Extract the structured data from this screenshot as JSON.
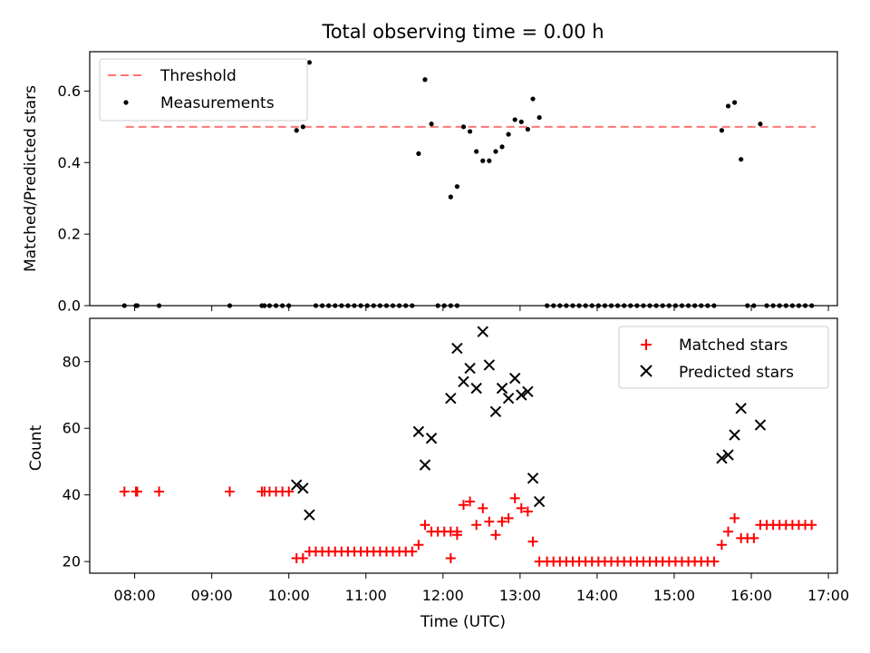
{
  "chart_data": [
    {
      "type": "scatter",
      "title": "Total observing time = 0.00 h",
      "ylabel": "Matched/Predicted stars",
      "ylim": [
        0,
        0.71
      ],
      "yticks": [
        0.0,
        0.2,
        0.4,
        0.6
      ],
      "ytick_labels": [
        "0.0",
        "0.2",
        "0.4",
        "0.6"
      ],
      "legend_position": "top-left",
      "threshold": {
        "name": "Threshold",
        "value": 0.5,
        "x_range": [
          "07:53",
          "16:50"
        ],
        "color": "#ff7777"
      },
      "series": [
        {
          "name": "Measurements",
          "color": "#000000",
          "points": [
            {
              "x": "07:52",
              "y": 0
            },
            {
              "x": "08:01",
              "y": 0
            },
            {
              "x": "08:02",
              "y": 0
            },
            {
              "x": "08:19",
              "y": 0
            },
            {
              "x": "09:14",
              "y": 0
            },
            {
              "x": "09:39",
              "y": 0
            },
            {
              "x": "09:41",
              "y": 0
            },
            {
              "x": "09:45",
              "y": 0
            },
            {
              "x": "09:50",
              "y": 0
            },
            {
              "x": "09:55",
              "y": 0
            },
            {
              "x": "10:00",
              "y": 0
            },
            {
              "x": "10:06",
              "y": 0.49
            },
            {
              "x": "10:11",
              "y": 0.5
            },
            {
              "x": "10:16",
              "y": 0.68
            },
            {
              "x": "10:21",
              "y": 0
            },
            {
              "x": "10:26",
              "y": 0
            },
            {
              "x": "10:31",
              "y": 0
            },
            {
              "x": "10:36",
              "y": 0
            },
            {
              "x": "10:41",
              "y": 0
            },
            {
              "x": "10:46",
              "y": 0
            },
            {
              "x": "10:51",
              "y": 0
            },
            {
              "x": "10:56",
              "y": 0
            },
            {
              "x": "11:01",
              "y": 0
            },
            {
              "x": "11:06",
              "y": 0
            },
            {
              "x": "11:11",
              "y": 0
            },
            {
              "x": "11:16",
              "y": 0
            },
            {
              "x": "11:21",
              "y": 0
            },
            {
              "x": "11:26",
              "y": 0
            },
            {
              "x": "11:31",
              "y": 0
            },
            {
              "x": "11:36",
              "y": 0
            },
            {
              "x": "11:41",
              "y": 0.425
            },
            {
              "x": "11:46",
              "y": 0.632
            },
            {
              "x": "11:51",
              "y": 0.508
            },
            {
              "x": "11:56",
              "y": 0
            },
            {
              "x": "12:01",
              "y": 0
            },
            {
              "x": "12:06",
              "y": 0
            },
            {
              "x": "12:11",
              "y": 0
            },
            {
              "x": "12:06",
              "y": 0.304
            },
            {
              "x": "12:11",
              "y": 0.333
            },
            {
              "x": "12:16",
              "y": 0.5
            },
            {
              "x": "12:21",
              "y": 0.487
            },
            {
              "x": "12:26",
              "y": 0.431
            },
            {
              "x": "12:31",
              "y": 0.405
            },
            {
              "x": "12:36",
              "y": 0.405
            },
            {
              "x": "12:41",
              "y": 0.431
            },
            {
              "x": "12:46",
              "y": 0.444
            },
            {
              "x": "12:51",
              "y": 0.479
            },
            {
              "x": "12:56",
              "y": 0.52
            },
            {
              "x": "13:01",
              "y": 0.514
            },
            {
              "x": "13:06",
              "y": 0.493
            },
            {
              "x": "13:10",
              "y": 0.578
            },
            {
              "x": "13:15",
              "y": 0.526
            },
            {
              "x": "13:21",
              "y": 0
            },
            {
              "x": "13:26",
              "y": 0
            },
            {
              "x": "13:31",
              "y": 0
            },
            {
              "x": "13:36",
              "y": 0
            },
            {
              "x": "13:41",
              "y": 0
            },
            {
              "x": "13:46",
              "y": 0
            },
            {
              "x": "13:51",
              "y": 0
            },
            {
              "x": "13:56",
              "y": 0
            },
            {
              "x": "14:01",
              "y": 0
            },
            {
              "x": "14:06",
              "y": 0
            },
            {
              "x": "14:11",
              "y": 0
            },
            {
              "x": "14:16",
              "y": 0
            },
            {
              "x": "14:21",
              "y": 0
            },
            {
              "x": "14:26",
              "y": 0
            },
            {
              "x": "14:31",
              "y": 0
            },
            {
              "x": "14:36",
              "y": 0
            },
            {
              "x": "14:41",
              "y": 0
            },
            {
              "x": "14:46",
              "y": 0
            },
            {
              "x": "14:51",
              "y": 0
            },
            {
              "x": "14:56",
              "y": 0
            },
            {
              "x": "15:01",
              "y": 0
            },
            {
              "x": "15:06",
              "y": 0
            },
            {
              "x": "15:11",
              "y": 0
            },
            {
              "x": "15:16",
              "y": 0
            },
            {
              "x": "15:21",
              "y": 0
            },
            {
              "x": "15:26",
              "y": 0
            },
            {
              "x": "15:31",
              "y": 0
            },
            {
              "x": "15:37",
              "y": 0.49
            },
            {
              "x": "15:42",
              "y": 0.558
            },
            {
              "x": "15:47",
              "y": 0.568
            },
            {
              "x": "15:52",
              "y": 0.409
            },
            {
              "x": "15:57",
              "y": 0
            },
            {
              "x": "16:02",
              "y": 0
            },
            {
              "x": "16:07",
              "y": 0.508
            },
            {
              "x": "16:12",
              "y": 0
            },
            {
              "x": "16:17",
              "y": 0
            },
            {
              "x": "16:22",
              "y": 0
            },
            {
              "x": "16:27",
              "y": 0
            },
            {
              "x": "16:32",
              "y": 0
            },
            {
              "x": "16:37",
              "y": 0
            },
            {
              "x": "16:42",
              "y": 0
            },
            {
              "x": "16:47",
              "y": 0
            }
          ]
        }
      ]
    },
    {
      "type": "scatter",
      "xlabel": "Time (UTC)",
      "ylabel": "Count",
      "xlim": [
        "07:25",
        "17:07"
      ],
      "ylim": [
        16.5,
        93
      ],
      "yticks": [
        20,
        40,
        60,
        80
      ],
      "ytick_labels": [
        "20",
        "40",
        "60",
        "80"
      ],
      "xtick_labels": [
        "08:00",
        "09:00",
        "10:00",
        "11:00",
        "12:00",
        "13:00",
        "14:00",
        "15:00",
        "16:00",
        "17:00"
      ],
      "legend_position": "top-right",
      "series": [
        {
          "name": "Matched stars",
          "marker": "plus",
          "color": "#ff0000",
          "points": [
            {
              "x": "07:52",
              "y": 41
            },
            {
              "x": "08:01",
              "y": 41
            },
            {
              "x": "08:02",
              "y": 41
            },
            {
              "x": "08:19",
              "y": 41
            },
            {
              "x": "09:14",
              "y": 41
            },
            {
              "x": "09:39",
              "y": 41
            },
            {
              "x": "09:41",
              "y": 41
            },
            {
              "x": "09:45",
              "y": 41
            },
            {
              "x": "09:50",
              "y": 41
            },
            {
              "x": "09:55",
              "y": 41
            },
            {
              "x": "10:00",
              "y": 41
            },
            {
              "x": "10:06",
              "y": 21
            },
            {
              "x": "10:11",
              "y": 21
            },
            {
              "x": "10:16",
              "y": 23
            },
            {
              "x": "10:21",
              "y": 23
            },
            {
              "x": "10:26",
              "y": 23
            },
            {
              "x": "10:31",
              "y": 23
            },
            {
              "x": "10:36",
              "y": 23
            },
            {
              "x": "10:41",
              "y": 23
            },
            {
              "x": "10:46",
              "y": 23
            },
            {
              "x": "10:51",
              "y": 23
            },
            {
              "x": "10:56",
              "y": 23
            },
            {
              "x": "11:01",
              "y": 23
            },
            {
              "x": "11:06",
              "y": 23
            },
            {
              "x": "11:11",
              "y": 23
            },
            {
              "x": "11:16",
              "y": 23
            },
            {
              "x": "11:21",
              "y": 23
            },
            {
              "x": "11:26",
              "y": 23
            },
            {
              "x": "11:31",
              "y": 23
            },
            {
              "x": "11:36",
              "y": 23
            },
            {
              "x": "11:41",
              "y": 25
            },
            {
              "x": "11:46",
              "y": 31
            },
            {
              "x": "11:51",
              "y": 29
            },
            {
              "x": "11:56",
              "y": 29
            },
            {
              "x": "12:01",
              "y": 29
            },
            {
              "x": "12:06",
              "y": 29
            },
            {
              "x": "12:11",
              "y": 29
            },
            {
              "x": "12:06",
              "y": 21
            },
            {
              "x": "12:11",
              "y": 28
            },
            {
              "x": "12:16",
              "y": 37
            },
            {
              "x": "12:21",
              "y": 38
            },
            {
              "x": "12:26",
              "y": 31
            },
            {
              "x": "12:31",
              "y": 36
            },
            {
              "x": "12:36",
              "y": 32
            },
            {
              "x": "12:41",
              "y": 28
            },
            {
              "x": "12:46",
              "y": 32
            },
            {
              "x": "12:51",
              "y": 33
            },
            {
              "x": "12:56",
              "y": 39
            },
            {
              "x": "13:01",
              "y": 36
            },
            {
              "x": "13:06",
              "y": 35
            },
            {
              "x": "13:10",
              "y": 26
            },
            {
              "x": "13:15",
              "y": 20
            },
            {
              "x": "13:21",
              "y": 20
            },
            {
              "x": "13:26",
              "y": 20
            },
            {
              "x": "13:31",
              "y": 20
            },
            {
              "x": "13:36",
              "y": 20
            },
            {
              "x": "13:41",
              "y": 20
            },
            {
              "x": "13:46",
              "y": 20
            },
            {
              "x": "13:51",
              "y": 20
            },
            {
              "x": "13:56",
              "y": 20
            },
            {
              "x": "14:01",
              "y": 20
            },
            {
              "x": "14:06",
              "y": 20
            },
            {
              "x": "14:11",
              "y": 20
            },
            {
              "x": "14:16",
              "y": 20
            },
            {
              "x": "14:21",
              "y": 20
            },
            {
              "x": "14:26",
              "y": 20
            },
            {
              "x": "14:31",
              "y": 20
            },
            {
              "x": "14:36",
              "y": 20
            },
            {
              "x": "14:41",
              "y": 20
            },
            {
              "x": "14:46",
              "y": 20
            },
            {
              "x": "14:51",
              "y": 20
            },
            {
              "x": "14:56",
              "y": 20
            },
            {
              "x": "15:01",
              "y": 20
            },
            {
              "x": "15:06",
              "y": 20
            },
            {
              "x": "15:11",
              "y": 20
            },
            {
              "x": "15:16",
              "y": 20
            },
            {
              "x": "15:21",
              "y": 20
            },
            {
              "x": "15:26",
              "y": 20
            },
            {
              "x": "15:31",
              "y": 20
            },
            {
              "x": "15:37",
              "y": 25
            },
            {
              "x": "15:42",
              "y": 29
            },
            {
              "x": "15:47",
              "y": 33
            },
            {
              "x": "15:52",
              "y": 27
            },
            {
              "x": "15:57",
              "y": 27
            },
            {
              "x": "16:02",
              "y": 27
            },
            {
              "x": "16:07",
              "y": 31
            },
            {
              "x": "16:12",
              "y": 31
            },
            {
              "x": "16:17",
              "y": 31
            },
            {
              "x": "16:22",
              "y": 31
            },
            {
              "x": "16:27",
              "y": 31
            },
            {
              "x": "16:32",
              "y": 31
            },
            {
              "x": "16:37",
              "y": 31
            },
            {
              "x": "16:42",
              "y": 31
            },
            {
              "x": "16:47",
              "y": 31
            }
          ]
        },
        {
          "name": "Predicted stars",
          "marker": "x",
          "color": "#000000",
          "points": [
            {
              "x": "10:06",
              "y": 43
            },
            {
              "x": "10:11",
              "y": 42
            },
            {
              "x": "10:16",
              "y": 34
            },
            {
              "x": "11:41",
              "y": 59
            },
            {
              "x": "11:46",
              "y": 49
            },
            {
              "x": "11:51",
              "y": 57
            },
            {
              "x": "12:06",
              "y": 69
            },
            {
              "x": "12:11",
              "y": 84
            },
            {
              "x": "12:16",
              "y": 74
            },
            {
              "x": "12:21",
              "y": 78
            },
            {
              "x": "12:26",
              "y": 72
            },
            {
              "x": "12:31",
              "y": 89
            },
            {
              "x": "12:36",
              "y": 79
            },
            {
              "x": "12:41",
              "y": 65
            },
            {
              "x": "12:46",
              "y": 72
            },
            {
              "x": "12:51",
              "y": 69
            },
            {
              "x": "12:56",
              "y": 75
            },
            {
              "x": "13:01",
              "y": 70
            },
            {
              "x": "13:06",
              "y": 71
            },
            {
              "x": "13:10",
              "y": 45
            },
            {
              "x": "13:15",
              "y": 38
            },
            {
              "x": "15:37",
              "y": 51
            },
            {
              "x": "15:42",
              "y": 52
            },
            {
              "x": "15:47",
              "y": 58
            },
            {
              "x": "15:52",
              "y": 66
            },
            {
              "x": "16:07",
              "y": 61
            }
          ]
        }
      ]
    }
  ]
}
